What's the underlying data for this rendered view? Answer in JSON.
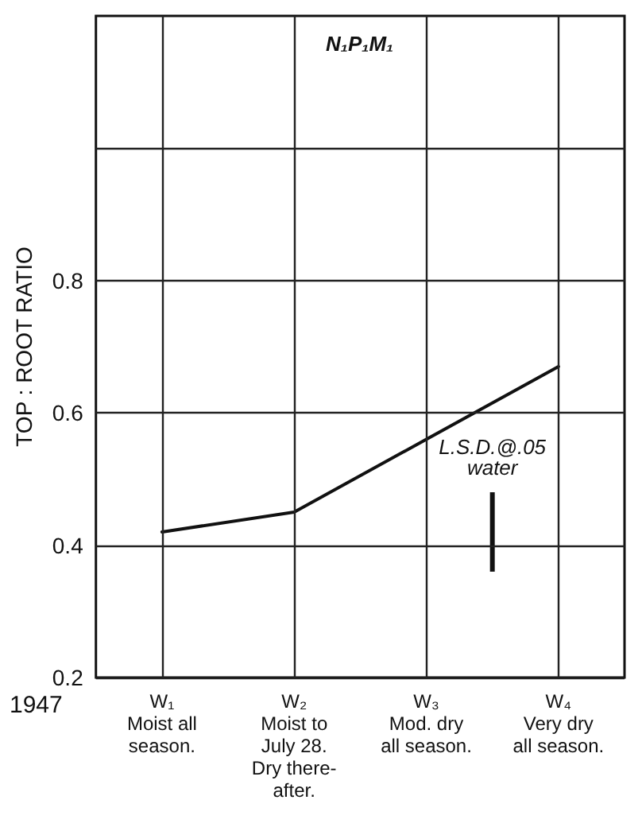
{
  "chart_data": {
    "type": "line",
    "title": "N₁P₁M₁",
    "ylabel": "TOP : ROOT RATIO",
    "categories": [
      null,
      "W₁\nMoist all\nseason.",
      null,
      "W₂\nMoist to\nJuly 28.\nDry there-\nafter.",
      null,
      "W₃\nMod. dry\nall season.",
      null,
      "W₄\nVery dry\nall season.",
      null
    ],
    "ylim": [
      0.2,
      1.2
    ],
    "yticks": [
      0.2,
      0.4,
      0.6,
      0.8,
      {
        "value": 1.0,
        "label": null
      }
    ],
    "series": [
      {
        "color": "#111111",
        "x": [
          "W₁\nMoist all\nseason.",
          "W₂\nMoist to\nJuly 28.\nDry there-\nafter.",
          "W₃\nMod. dry\nall season.",
          "W₄\nVery dry\nall season."
        ],
        "values": [
          0.42,
          0.45,
          0.56,
          0.67
        ]
      },
      {
        "type": "bar",
        "name": "L.S.D.@.05\nwater",
        "color": "#111111",
        "base": [
          null,
          null,
          null,
          null,
          null,
          null,
          0.36,
          null,
          null
        ],
        "values": [
          null,
          null,
          null,
          null,
          null,
          null,
          0.12,
          null,
          null
        ]
      }
    ],
    "annotations": [
      "1947"
    ],
    "grid": true,
    "legend": false,
    "marker": "none",
    "line_style": "solid"
  }
}
